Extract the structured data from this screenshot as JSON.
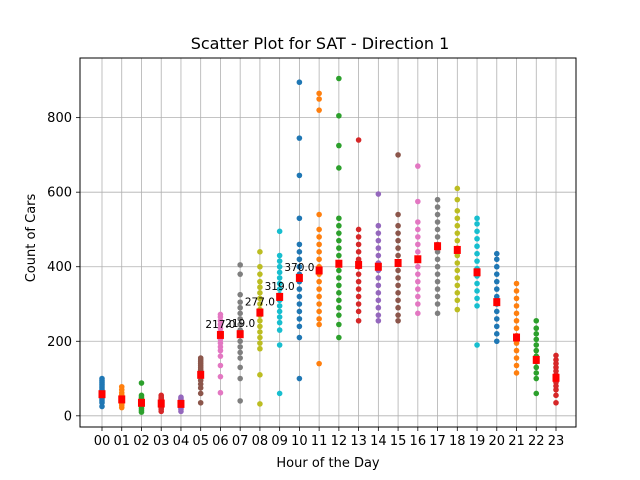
{
  "chart_data": {
    "type": "scatter",
    "title": "Scatter Plot for SAT - Direction 1",
    "xlabel": "Hour of the Day",
    "ylabel": "Count of Cars",
    "categories": [
      "00",
      "01",
      "02",
      "03",
      "04",
      "05",
      "06",
      "07",
      "08",
      "09",
      "10",
      "11",
      "12",
      "13",
      "14",
      "15",
      "16",
      "17",
      "18",
      "19",
      "20",
      "21",
      "22",
      "23"
    ],
    "ylim": [
      -30,
      960
    ],
    "yticks": [
      0,
      200,
      400,
      600,
      800
    ],
    "grid": true,
    "palette": [
      "#1f77b4",
      "#ff7f0e",
      "#2ca02c",
      "#d62728",
      "#9467bd",
      "#8c564b",
      "#e377c2",
      "#7f7f7f",
      "#bcbd22",
      "#17becf"
    ],
    "mean_color": "#ff0000",
    "hours": [
      {
        "x": "00",
        "points": [
          25,
          35,
          40,
          45,
          50,
          55,
          60,
          65,
          70,
          75,
          80,
          85,
          90,
          95,
          100
        ],
        "mean": 58
      },
      {
        "x": "01",
        "points": [
          22,
          28,
          32,
          36,
          40,
          44,
          48,
          52,
          56,
          62,
          70,
          78
        ],
        "mean": 44
      },
      {
        "x": "02",
        "points": [
          10,
          15,
          20,
          25,
          28,
          32,
          35,
          40,
          45,
          50,
          55,
          88
        ],
        "mean": 35
      },
      {
        "x": "03",
        "points": [
          12,
          18,
          22,
          26,
          30,
          34,
          38,
          42,
          46,
          50,
          55
        ],
        "mean": 33
      },
      {
        "x": "04",
        "points": [
          12,
          18,
          22,
          26,
          30,
          34,
          38,
          42,
          46,
          50
        ],
        "mean": 32
      },
      {
        "x": "05",
        "points": [
          35,
          60,
          75,
          85,
          95,
          105,
          110,
          115,
          120,
          125,
          130,
          135,
          140,
          145,
          150,
          155
        ],
        "mean": 110
      },
      {
        "x": "06",
        "points": [
          62,
          105,
          135,
          160,
          175,
          185,
          195,
          205,
          215,
          225,
          235,
          245,
          255,
          265,
          272
        ],
        "mean": 217
      },
      {
        "x": "07",
        "points": [
          40,
          100,
          130,
          155,
          170,
          185,
          200,
          215,
          230,
          245,
          260,
          275,
          290,
          305,
          325,
          380,
          405
        ],
        "mean": 219
      },
      {
        "x": "08",
        "points": [
          32,
          110,
          180,
          195,
          210,
          225,
          240,
          255,
          270,
          285,
          300,
          315,
          330,
          345,
          360,
          380,
          400,
          440
        ],
        "mean": 277
      },
      {
        "x": "09",
        "points": [
          60,
          190,
          230,
          250,
          265,
          280,
          295,
          310,
          325,
          340,
          355,
          370,
          385,
          400,
          415,
          430,
          495
        ],
        "mean": 319
      },
      {
        "x": "10",
        "points": [
          100,
          210,
          240,
          260,
          280,
          300,
          320,
          340,
          360,
          380,
          400,
          420,
          440,
          460,
          530,
          645,
          745,
          895
        ],
        "mean": 370
      },
      {
        "x": "11",
        "points": [
          140,
          245,
          260,
          280,
          300,
          320,
          340,
          360,
          380,
          400,
          420,
          440,
          460,
          480,
          500,
          540,
          820,
          850,
          865
        ],
        "mean": 390
      },
      {
        "x": "12",
        "points": [
          210,
          245,
          270,
          290,
          310,
          330,
          350,
          370,
          390,
          410,
          430,
          450,
          470,
          490,
          510,
          530,
          665,
          725,
          805,
          905
        ],
        "mean": 408
      },
      {
        "x": "13",
        "points": [
          255,
          280,
          300,
          320,
          340,
          360,
          380,
          400,
          420,
          440,
          460,
          480,
          500,
          740
        ],
        "mean": 405
      },
      {
        "x": "14",
        "points": [
          255,
          270,
          290,
          310,
          330,
          350,
          370,
          390,
          410,
          430,
          450,
          470,
          490,
          510,
          595
        ],
        "mean": 400
      },
      {
        "x": "15",
        "points": [
          255,
          270,
          290,
          310,
          330,
          350,
          370,
          390,
          410,
          430,
          450,
          470,
          490,
          510,
          540,
          700
        ],
        "mean": 410
      },
      {
        "x": "16",
        "points": [
          275,
          300,
          320,
          340,
          360,
          380,
          400,
          420,
          440,
          460,
          480,
          500,
          520,
          575,
          670
        ],
        "mean": 420
      },
      {
        "x": "17",
        "points": [
          275,
          300,
          320,
          340,
          360,
          380,
          400,
          420,
          440,
          460,
          480,
          500,
          520,
          540,
          560,
          580
        ],
        "mean": 455
      },
      {
        "x": "18",
        "points": [
          285,
          310,
          330,
          350,
          370,
          390,
          410,
          430,
          450,
          470,
          490,
          510,
          530,
          550,
          580,
          610
        ],
        "mean": 445
      },
      {
        "x": "19",
        "points": [
          190,
          295,
          315,
          335,
          355,
          375,
          395,
          415,
          435,
          455,
          475,
          495,
          515,
          530
        ],
        "mean": 385
      },
      {
        "x": "20",
        "points": [
          200,
          220,
          240,
          260,
          280,
          300,
          320,
          340,
          360,
          380,
          400,
          420,
          435
        ],
        "mean": 305
      },
      {
        "x": "21",
        "points": [
          115,
          135,
          155,
          175,
          195,
          215,
          235,
          255,
          275,
          295,
          315,
          335,
          355
        ],
        "mean": 210
      },
      {
        "x": "22",
        "points": [
          60,
          100,
          115,
          130,
          145,
          160,
          175,
          190,
          205,
          220,
          235,
          255
        ],
        "mean": 150
      },
      {
        "x": "23",
        "points": [
          35,
          55,
          70,
          80,
          90,
          100,
          110,
          120,
          130,
          140,
          150,
          162
        ],
        "mean": 102
      }
    ],
    "annotations": [
      {
        "x": "06",
        "y": 217,
        "text": "217.0"
      },
      {
        "x": "07",
        "y": 219,
        "text": "219.0"
      },
      {
        "x": "08",
        "y": 277,
        "text": "277.0"
      },
      {
        "x": "09",
        "y": 319,
        "text": "319.0"
      },
      {
        "x": "10",
        "y": 370,
        "text": "370.0"
      }
    ]
  }
}
